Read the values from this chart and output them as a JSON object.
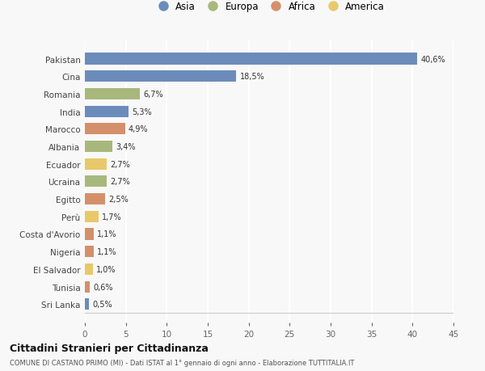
{
  "countries": [
    "Pakistan",
    "Cina",
    "Romania",
    "India",
    "Marocco",
    "Albania",
    "Ecuador",
    "Ucraina",
    "Egitto",
    "Perù",
    "Costa d'Avorio",
    "Nigeria",
    "El Salvador",
    "Tunisia",
    "Sri Lanka"
  ],
  "values": [
    40.6,
    18.5,
    6.7,
    5.3,
    4.9,
    3.4,
    2.7,
    2.7,
    2.5,
    1.7,
    1.1,
    1.1,
    1.0,
    0.6,
    0.5
  ],
  "labels": [
    "40,6%",
    "18,5%",
    "6,7%",
    "5,3%",
    "4,9%",
    "3,4%",
    "2,7%",
    "2,7%",
    "2,5%",
    "1,7%",
    "1,1%",
    "1,1%",
    "1,0%",
    "0,6%",
    "0,5%"
  ],
  "continents": [
    "Asia",
    "Asia",
    "Europa",
    "Asia",
    "Africa",
    "Europa",
    "America",
    "Europa",
    "Africa",
    "America",
    "Africa",
    "Africa",
    "America",
    "Africa",
    "Asia"
  ],
  "colors": {
    "Asia": "#6b8cba",
    "Europa": "#a8b87c",
    "Africa": "#d4906a",
    "America": "#e8c96a"
  },
  "legend_labels": [
    "Asia",
    "Europa",
    "Africa",
    "America"
  ],
  "title": "Cittadini Stranieri per Cittadinanza",
  "subtitle": "COMUNE DI CASTANO PRIMO (MI) - Dati ISTAT al 1° gennaio di ogni anno - Elaborazione TUTTITALIA.IT",
  "xlim": [
    0,
    45
  ],
  "xticks": [
    0,
    5,
    10,
    15,
    20,
    25,
    30,
    35,
    40,
    45
  ],
  "background_color": "#f8f8f8",
  "grid_color": "#ffffff",
  "bar_height": 0.65
}
